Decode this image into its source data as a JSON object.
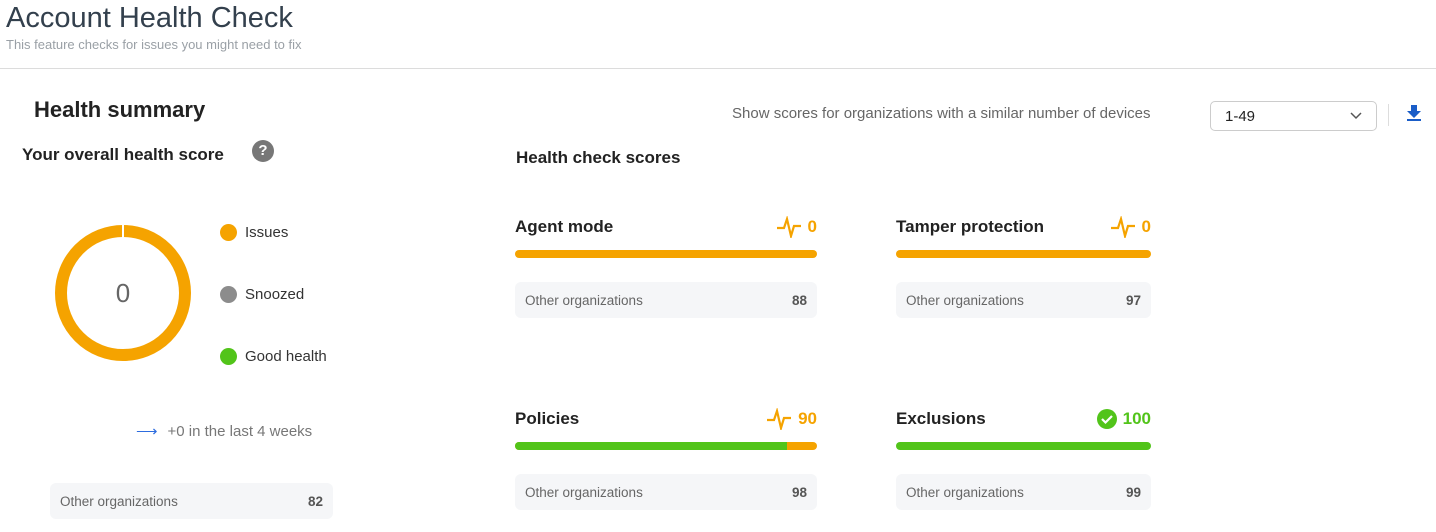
{
  "header": {
    "title": "Account Health Check",
    "subtitle": "This feature checks for issues you might need to fix"
  },
  "summary": {
    "heading": "Health summary",
    "overall_label": "Your overall health score",
    "help_icon": "question-circle-icon",
    "score": "0",
    "legend": [
      {
        "label": "Issues",
        "color": "#f5a300"
      },
      {
        "label": "Snoozed",
        "color": "#8c8c8c"
      },
      {
        "label": "Good health",
        "color": "#52c41a"
      }
    ],
    "trend": "+0 in the last 4 weeks",
    "other_label": "Other organizations",
    "other_value": "82"
  },
  "filter": {
    "label": "Show scores for organizations with a similar number of devices",
    "selected": "1-49"
  },
  "scores": {
    "heading": "Health check scores",
    "cards": [
      {
        "name": "Agent mode",
        "score": "0",
        "good_pct": 0,
        "status": "issue",
        "other_label": "Other organizations",
        "other_value": "88"
      },
      {
        "name": "Tamper protection",
        "score": "0",
        "good_pct": 0,
        "status": "issue",
        "other_label": "Other organizations",
        "other_value": "97"
      },
      {
        "name": "Policies",
        "score": "90",
        "good_pct": 90,
        "status": "issue",
        "other_label": "Other organizations",
        "other_value": "98"
      },
      {
        "name": "Exclusions",
        "score": "100",
        "good_pct": 100,
        "status": "good",
        "other_label": "Other organizations",
        "other_value": "99"
      }
    ]
  },
  "colors": {
    "issue": "#f5a300",
    "good": "#52c41a",
    "accent": "#1a5dc8"
  }
}
